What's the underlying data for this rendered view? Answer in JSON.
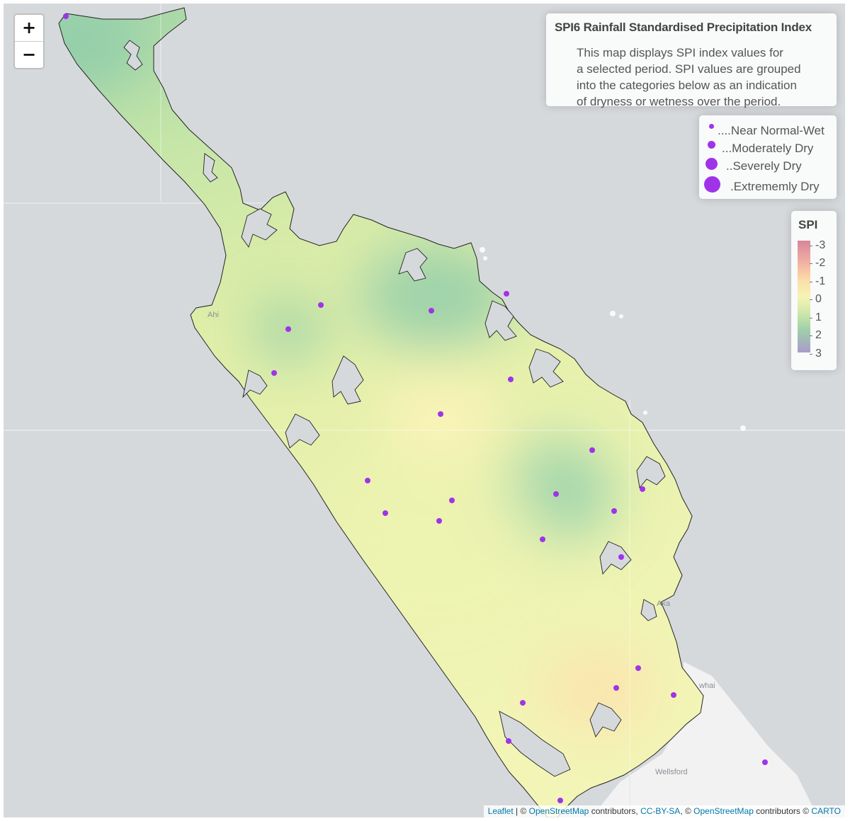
{
  "controls": {
    "zoom_in": "+",
    "zoom_out": "−"
  },
  "info": {
    "title": "SPI6 Rainfall Standardised Precipitation Index",
    "lines": [
      "This map displays SPI index values for",
      "a selected period. SPI values are grouped",
      "into the categories below as an indication",
      "of dryness or wetness over the period."
    ]
  },
  "size_legend": [
    {
      "label": "....Near Normal-Wet",
      "category": "near-normal-wet"
    },
    {
      "label": "...Moderately Dry",
      "category": "moderately-dry"
    },
    {
      "label": "..Severely Dry",
      "category": "severely-dry"
    },
    {
      "label": ".Extrememly Dry",
      "category": "extremely-dry"
    }
  ],
  "scale": {
    "title": "SPI",
    "ticks": [
      "-3",
      "-2",
      "-1",
      "0",
      "1",
      "2",
      "3"
    ]
  },
  "colors": {
    "point": "#a033e8",
    "water": "#d6d9dc",
    "land_base": "#eef3b6"
  },
  "places": [
    "Ahi",
    "Wellsford",
    "whai",
    "Aka"
  ],
  "attribution": {
    "leaflet": "Leaflet",
    "sep1": " | © ",
    "osm1": "OpenStreetMap",
    "mid1": " contributors, ",
    "ccbysa": "CC-BY-SA",
    "mid2": ", © ",
    "osm2": "OpenStreetMap",
    "mid3": " contributors © ",
    "carto": "CARTO"
  }
}
